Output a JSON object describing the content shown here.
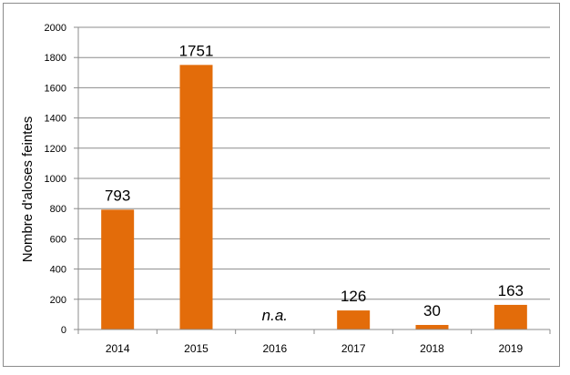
{
  "chart_data": {
    "type": "bar",
    "categories": [
      "2014",
      "2015",
      "2016",
      "2017",
      "2018",
      "2019"
    ],
    "values": [
      793,
      1751,
      null,
      126,
      30,
      163
    ],
    "data_labels": [
      "793",
      "1751",
      "n.a.",
      "126",
      "30",
      "163"
    ],
    "ylabel": "Nombre d'aloses feintes",
    "xlabel": "",
    "ylim": [
      0,
      2000
    ],
    "yticks": [
      0,
      200,
      400,
      600,
      800,
      1000,
      1200,
      1400,
      1600,
      1800,
      2000
    ],
    "grid": true,
    "bar_color": "#E36C0A",
    "legend": "none"
  }
}
